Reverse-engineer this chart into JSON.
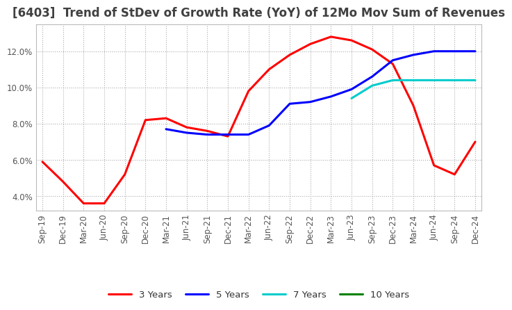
{
  "title": "[6403]  Trend of StDev of Growth Rate (YoY) of 12Mo Mov Sum of Revenues",
  "legend_labels": [
    "3 Years",
    "5 Years",
    "7 Years",
    "10 Years"
  ],
  "legend_colors": [
    "#ff0000",
    "#0000ff",
    "#00cccc",
    "#008000"
  ],
  "x_labels": [
    "Sep-19",
    "Dec-19",
    "Mar-20",
    "Jun-20",
    "Sep-20",
    "Dec-20",
    "Mar-21",
    "Jun-21",
    "Sep-21",
    "Dec-21",
    "Mar-22",
    "Jun-22",
    "Sep-22",
    "Dec-22",
    "Mar-23",
    "Jun-23",
    "Sep-23",
    "Dec-23",
    "Mar-24",
    "Jun-24",
    "Sep-24",
    "Dec-24"
  ],
  "ylim": [
    0.032,
    0.135
  ],
  "yticks": [
    0.04,
    0.06,
    0.08,
    0.1,
    0.12
  ],
  "series": {
    "3yr": [
      0.059,
      0.048,
      0.036,
      0.036,
      0.052,
      0.082,
      0.083,
      0.078,
      0.076,
      0.073,
      0.098,
      0.11,
      0.118,
      0.124,
      0.128,
      0.126,
      0.121,
      0.113,
      0.09,
      0.057,
      0.052,
      0.07
    ],
    "5yr": [
      null,
      null,
      null,
      null,
      null,
      null,
      0.077,
      0.075,
      0.074,
      0.074,
      0.074,
      0.079,
      0.091,
      0.092,
      0.095,
      0.099,
      0.106,
      0.115,
      0.118,
      0.12,
      0.12,
      0.12
    ],
    "7yr": [
      null,
      null,
      null,
      null,
      null,
      null,
      null,
      null,
      null,
      null,
      null,
      null,
      null,
      null,
      null,
      0.094,
      0.101,
      0.104,
      0.104,
      0.104,
      0.104,
      0.104
    ],
    "10yr": [
      null,
      null,
      null,
      null,
      null,
      null,
      null,
      null,
      null,
      null,
      null,
      null,
      null,
      null,
      null,
      null,
      null,
      null,
      null,
      null,
      null,
      null
    ]
  },
  "background_color": "#ffffff",
  "grid_color": "#aaaaaa",
  "title_color": "#404040",
  "title_fontsize": 12,
  "tick_fontsize": 8.5,
  "legend_fontsize": 9.5
}
